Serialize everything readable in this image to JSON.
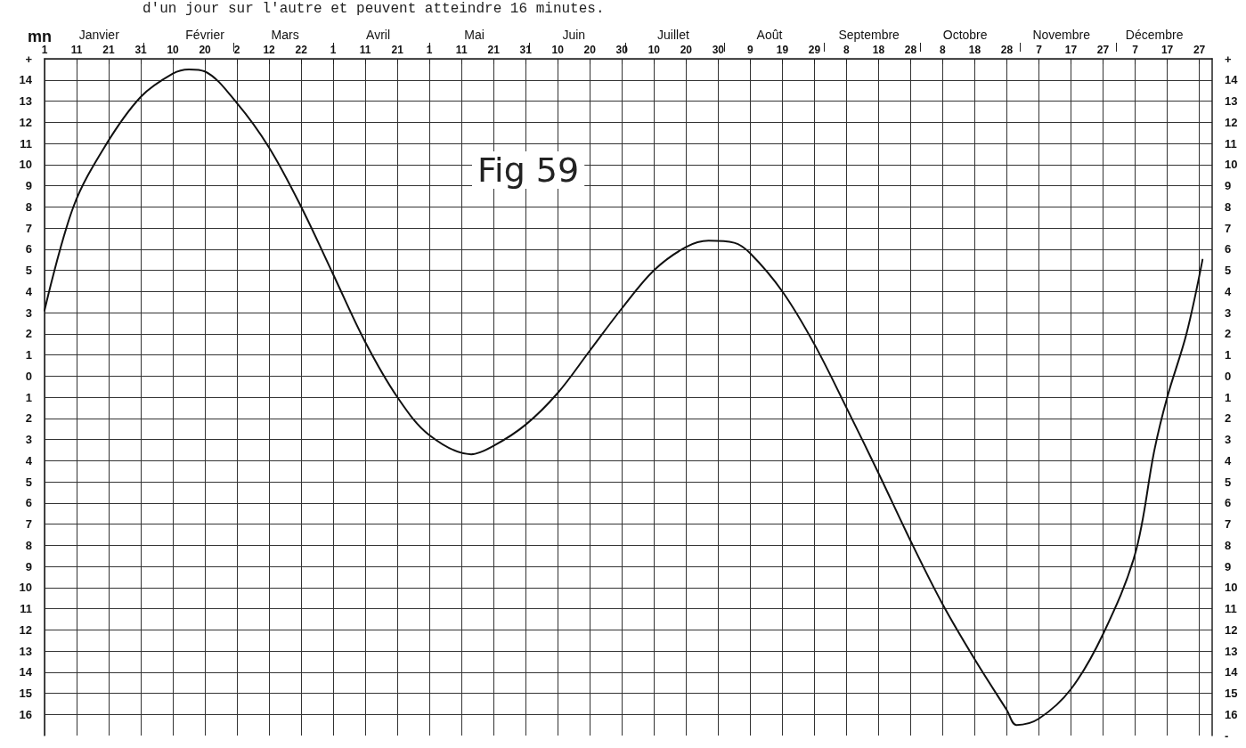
{
  "chart_data": {
    "type": "line",
    "ylabel": "mn",
    "annotations": [
      "d'un jour sur l'autre et peuvent atteindre 16 minutes.",
      "Fig 59"
    ],
    "x": [
      "--01-01",
      "--01-10",
      "--01-20",
      "--01-31",
      "--02-10",
      "--02-15",
      "--02-20",
      "--03-02",
      "--03-12",
      "--03-22",
      "--04-01",
      "--04-11",
      "--04-21",
      "--05-01",
      "--05-14",
      "--05-21",
      "--05-31",
      "--06-10",
      "--06-20",
      "--06-30",
      "--07-10",
      "--07-20",
      "--07-27",
      "--08-04",
      "--08-09",
      "--08-19",
      "--08-29",
      "--09-08",
      "--09-18",
      "--09-28",
      "--10-08",
      "--10-18",
      "--10-28",
      "--10-31",
      "--11-07",
      "--11-17",
      "--11-27",
      "--12-07",
      "--12-13",
      "--12-17",
      "--12-23",
      "--12-28"
    ],
    "series": [
      {
        "color": "#111111",
        "values": [
          3.1,
          8.0,
          10.9,
          13.2,
          14.3,
          14.5,
          14.4,
          12.9,
          10.8,
          8.0,
          4.8,
          1.6,
          -1.0,
          -2.8,
          -3.7,
          -3.3,
          -2.3,
          -0.8,
          1.2,
          3.2,
          5.0,
          6.1,
          6.4,
          6.3,
          5.8,
          4.0,
          1.5,
          -1.5,
          -4.6,
          -7.8,
          -10.8,
          -13.4,
          -15.8,
          -16.5,
          -16.2,
          -14.8,
          -12.2,
          -8.4,
          -3.5,
          -1.0,
          2.0,
          5.5
        ]
      }
    ],
    "xlim": [
      "--01-01",
      "--12-31"
    ],
    "xticks": [
      {
        "value": "--01-01",
        "label": "1"
      },
      {
        "value": "--01-11",
        "label": "11"
      },
      {
        "value": "--01-21",
        "label": "21"
      },
      {
        "value": "--01-31",
        "label": "31"
      },
      {
        "value": "--02-10",
        "label": "10"
      },
      {
        "value": "--02-20",
        "label": "20"
      },
      {
        "value": "--03-02",
        "label": "2"
      },
      {
        "value": "--03-12",
        "label": "12"
      },
      {
        "value": "--03-22",
        "label": "22"
      },
      {
        "value": "--04-01",
        "label": "1"
      },
      {
        "value": "--04-11",
        "label": "11"
      },
      {
        "value": "--04-21",
        "label": "21"
      },
      {
        "value": "--05-01",
        "label": "1"
      },
      {
        "value": "--05-11",
        "label": "11"
      },
      {
        "value": "--05-21",
        "label": "21"
      },
      {
        "value": "--05-31",
        "label": "31"
      },
      {
        "value": "--06-10",
        "label": "10"
      },
      {
        "value": "--06-20",
        "label": "20"
      },
      {
        "value": "--06-30",
        "label": "30"
      },
      {
        "value": "--07-10",
        "label": "10"
      },
      {
        "value": "--07-20",
        "label": "20"
      },
      {
        "value": "--07-30",
        "label": "30"
      },
      {
        "value": "--08-09",
        "label": "9"
      },
      {
        "value": "--08-19",
        "label": "19"
      },
      {
        "value": "--08-29",
        "label": "29"
      },
      {
        "value": "--09-08",
        "label": "8"
      },
      {
        "value": "--09-18",
        "label": "18"
      },
      {
        "value": "--09-28",
        "label": "28"
      },
      {
        "value": "--10-08",
        "label": "8"
      },
      {
        "value": "--10-18",
        "label": "18"
      },
      {
        "value": "--10-28",
        "label": "28"
      },
      {
        "value": "--11-07",
        "label": "7"
      },
      {
        "value": "--11-17",
        "label": "17"
      },
      {
        "value": "--11-27",
        "label": "27"
      },
      {
        "value": "--12-07",
        "label": "7"
      },
      {
        "value": "--12-17",
        "label": "17"
      },
      {
        "value": "--12-27",
        "label": "27"
      }
    ],
    "x2lim": [
      "--01-01",
      "--12-31"
    ],
    "x2ticks": [
      {
        "value": "--01-18",
        "label": "Janvier"
      },
      {
        "value": "--02-01",
        "label": null
      },
      {
        "value": "--02-20",
        "label": "Février"
      },
      {
        "value": "--03-01",
        "label": null
      },
      {
        "value": "--03-17",
        "label": "Mars"
      },
      {
        "value": "--04-01",
        "label": null
      },
      {
        "value": "--04-15",
        "label": "Avril"
      },
      {
        "value": "--05-01",
        "label": null
      },
      {
        "value": "--05-15",
        "label": "Mai"
      },
      {
        "value": "--06-01",
        "label": null
      },
      {
        "value": "--06-15",
        "label": "Juin"
      },
      {
        "value": "--07-01",
        "label": null
      },
      {
        "value": "--07-16",
        "label": "Juillet"
      },
      {
        "value": "--08-01",
        "label": null
      },
      {
        "value": "--08-15",
        "label": "Août"
      },
      {
        "value": "--09-01",
        "label": null
      },
      {
        "value": "--09-15",
        "label": "Septembre"
      },
      {
        "value": "--10-01",
        "label": null
      },
      {
        "value": "--10-15",
        "label": "Octobre"
      },
      {
        "value": "--11-01",
        "label": null
      },
      {
        "value": "--11-14",
        "label": "Novembre"
      },
      {
        "value": "--12-01",
        "label": null
      },
      {
        "value": "--12-13",
        "label": "Décembre"
      }
    ],
    "ylim": [
      -17,
      15
    ],
    "yticks": [
      {
        "value": 15,
        "label": "+"
      },
      14,
      13,
      12,
      11,
      10,
      9,
      8,
      7,
      6,
      5,
      4,
      3,
      2,
      1,
      0,
      {
        "value": -1,
        "label": "1"
      },
      {
        "value": -2,
        "label": "2"
      },
      {
        "value": -3,
        "label": "3"
      },
      {
        "value": -4,
        "label": "4"
      },
      {
        "value": -5,
        "label": "5"
      },
      {
        "value": -6,
        "label": "6"
      },
      {
        "value": -7,
        "label": "7"
      },
      {
        "value": -8,
        "label": "8"
      },
      {
        "value": -9,
        "label": "9"
      },
      {
        "value": -10,
        "label": "10"
      },
      {
        "value": -11,
        "label": "11"
      },
      {
        "value": -12,
        "label": "12"
      },
      {
        "value": -13,
        "label": "13"
      },
      {
        "value": -14,
        "label": "14"
      },
      {
        "value": -15,
        "label": "15"
      },
      {
        "value": -16,
        "label": "16"
      }
    ],
    "y2lim": [
      -17,
      15
    ],
    "y2ticks": [
      {
        "value": 15,
        "label": "+"
      },
      14,
      13,
      12,
      11,
      10,
      9,
      8,
      7,
      6,
      5,
      4,
      3,
      2,
      1,
      0,
      {
        "value": -1,
        "label": "1"
      },
      {
        "value": -2,
        "label": "2"
      },
      {
        "value": -3,
        "label": "3"
      },
      {
        "value": -4,
        "label": "4"
      },
      {
        "value": -5,
        "label": "5"
      },
      {
        "value": -6,
        "label": "6"
      },
      {
        "value": -7,
        "label": "7"
      },
      {
        "value": -8,
        "label": "8"
      },
      {
        "value": -9,
        "label": "9"
      },
      {
        "value": -10,
        "label": "10"
      },
      {
        "value": -11,
        "label": "11"
      },
      {
        "value": -12,
        "label": "12"
      },
      {
        "value": -13,
        "label": "13"
      },
      {
        "value": -14,
        "label": "14"
      },
      {
        "value": -15,
        "label": "15"
      },
      {
        "value": -16,
        "label": "16"
      },
      {
        "value": -17,
        "label": "-"
      }
    ],
    "grid": true,
    "marker": "none",
    "line_style": "solid"
  }
}
